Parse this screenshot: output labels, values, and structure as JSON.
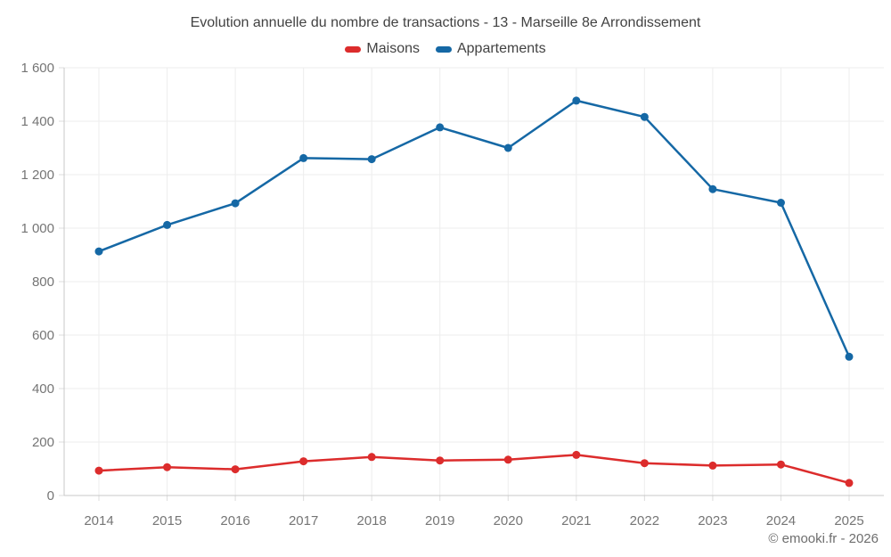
{
  "chart_data": {
    "type": "line",
    "title": "Evolution annuelle du nombre de transactions - 13 - Marseille 8e Arrondissement",
    "categories": [
      "2014",
      "2015",
      "2016",
      "2017",
      "2018",
      "2019",
      "2020",
      "2021",
      "2022",
      "2023",
      "2024",
      "2025"
    ],
    "series": [
      {
        "name": "Maisons",
        "color": "#dc2c2c",
        "values": [
          93,
          106,
          98,
          128,
          144,
          131,
          134,
          152,
          121,
          112,
          116,
          47
        ]
      },
      {
        "name": "Appartements",
        "color": "#1568a5",
        "values": [
          913,
          1012,
          1093,
          1262,
          1258,
          1377,
          1300,
          1477,
          1416,
          1146,
          1095,
          519
        ]
      }
    ],
    "xlabel": "",
    "ylabel": "",
    "ylim": [
      0,
      1600
    ],
    "y_ticks": [
      0,
      200,
      400,
      600,
      800,
      1000,
      1200,
      1400,
      1600
    ],
    "y_tick_labels": [
      "0",
      "200",
      "400",
      "600",
      "800",
      "1 000",
      "1 200",
      "1 400",
      "1 600"
    ],
    "grid": true,
    "legend_position": "top-center"
  },
  "footer": {
    "text": "© emooki.fr - 2026"
  },
  "theme": {
    "grid_color": "#ededed",
    "axis_color": "#c8c8c8",
    "tick_color": "#dcdcdc",
    "tick_label_color": "#757575",
    "title_color": "#424242"
  }
}
